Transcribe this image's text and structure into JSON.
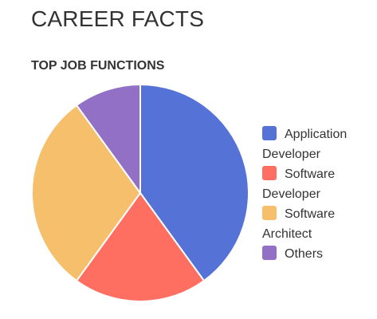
{
  "page": {
    "title": "CAREER FACTS"
  },
  "chart_data": {
    "type": "pie",
    "title": "TOP JOB FUNCTIONS",
    "categories": [
      "Application Developer",
      "Software Developer",
      "Software Architect",
      "Others"
    ],
    "values": [
      40,
      20,
      30,
      10
    ],
    "colors": [
      "#5572d6",
      "#fe6f61",
      "#f6bf6c",
      "#9170c6"
    ],
    "legend_position": "right"
  }
}
